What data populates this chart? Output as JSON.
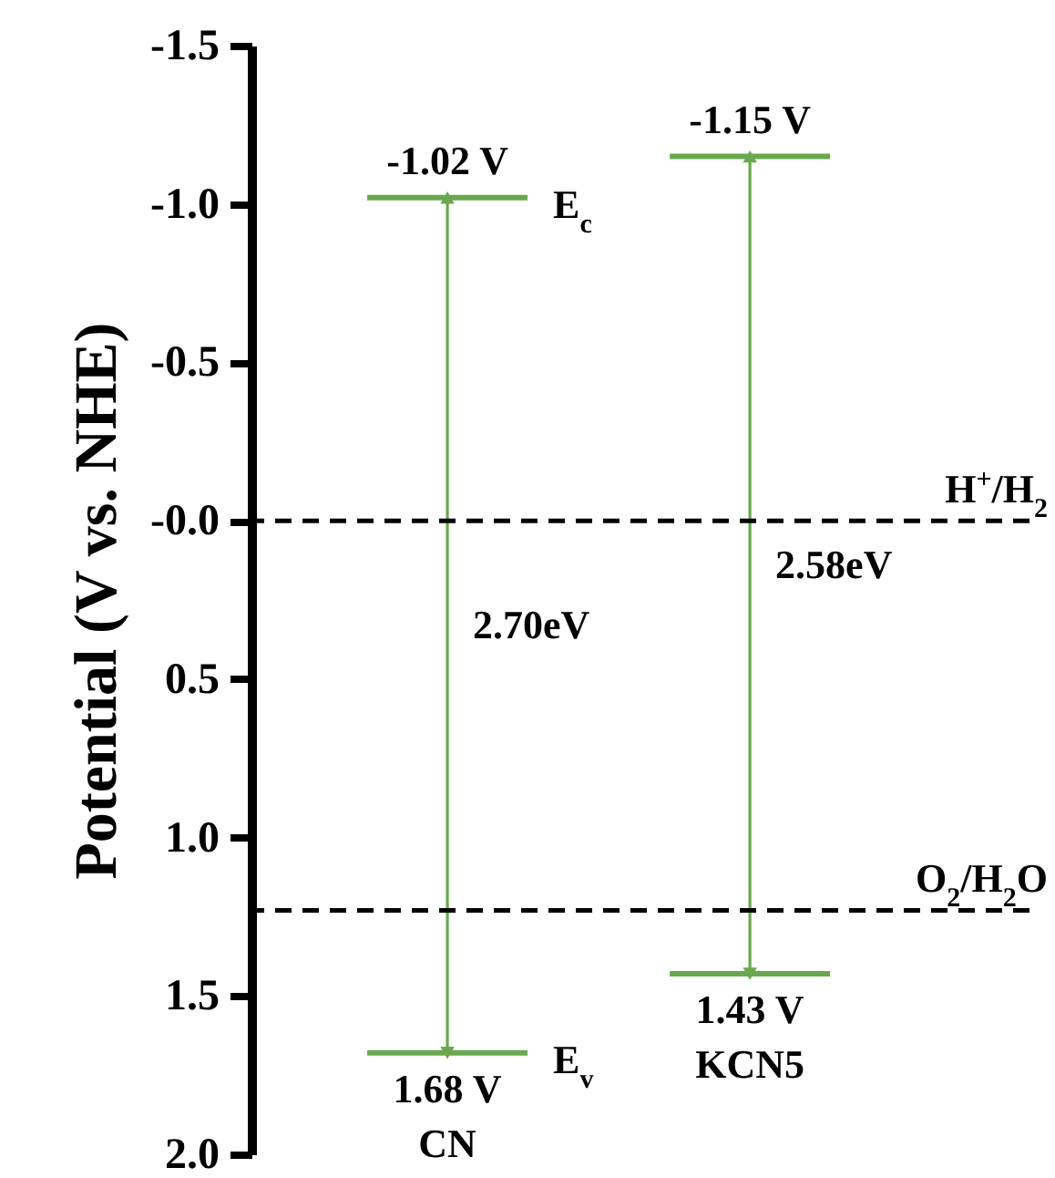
{
  "chart_data": {
    "type": "bar",
    "ylabel": "Potential (V vs. NHE)",
    "categories": [
      "CN",
      "KCN5"
    ],
    "base": [
      -1.02,
      -1.15
    ],
    "values": [
      2.7,
      2.58
    ],
    "color": "#6aa84f",
    "ylim": [
      2.0,
      -1.5
    ],
    "yticks": [
      {
        "value": -1.5,
        "label": "-1.5"
      },
      {
        "value": -1.0,
        "label": "-1.0"
      },
      {
        "value": -0.5,
        "label": "-0.5"
      },
      {
        "value": 0,
        "label": "-0.0"
      },
      0.5,
      {
        "value": 1.0,
        "label": "1.0"
      },
      1.5,
      {
        "value": 2.0,
        "label": "2.0"
      }
    ],
    "ref_lines": [
      {
        "axis": "y",
        "value": 0,
        "label": "H$^{+}$/H$_{2}$",
        "color": "#000000",
        "line_style": "dashed"
      },
      {
        "axis": "y",
        "value": 1.23,
        "label": "O$_{2}$/H$_{2}$O",
        "color": "#000000",
        "line_style": "dashed"
      }
    ],
    "annotations": [
      "-1.02 V",
      "E$_{c}$",
      "1.68 V",
      "E$_{v}$",
      "2.70eV",
      "-1.15 V",
      "1.43 V",
      "2.58eV"
    ]
  }
}
